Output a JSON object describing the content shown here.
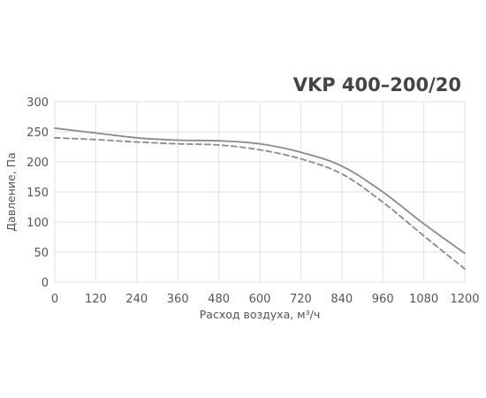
{
  "chart_data": {
    "type": "line",
    "title": "VKP 400–200/20",
    "xlabel": "Расход воздуха, м³/ч",
    "ylabel": "Давление, Па",
    "xlim": [
      0,
      1200
    ],
    "ylim": [
      0,
      300
    ],
    "xticks": [
      0,
      120,
      240,
      360,
      480,
      600,
      720,
      840,
      960,
      1080,
      1200
    ],
    "yticks": [
      0,
      50,
      100,
      150,
      200,
      250,
      300
    ],
    "grid": true,
    "legend": "none",
    "series": [
      {
        "style": "solid",
        "color": "#8a8a8a",
        "x": [
          0,
          120,
          240,
          360,
          480,
          600,
          720,
          840,
          960,
          1080,
          1200
        ],
        "y": [
          256,
          248,
          240,
          236,
          235,
          230,
          216,
          193,
          150,
          97,
          48
        ]
      },
      {
        "style": "dashed",
        "color": "#8a8a8a",
        "x": [
          0,
          120,
          240,
          360,
          480,
          600,
          720,
          840,
          960,
          1080,
          1200
        ],
        "y": [
          240,
          237,
          233,
          230,
          228,
          220,
          205,
          180,
          133,
          77,
          22
        ]
      }
    ]
  }
}
